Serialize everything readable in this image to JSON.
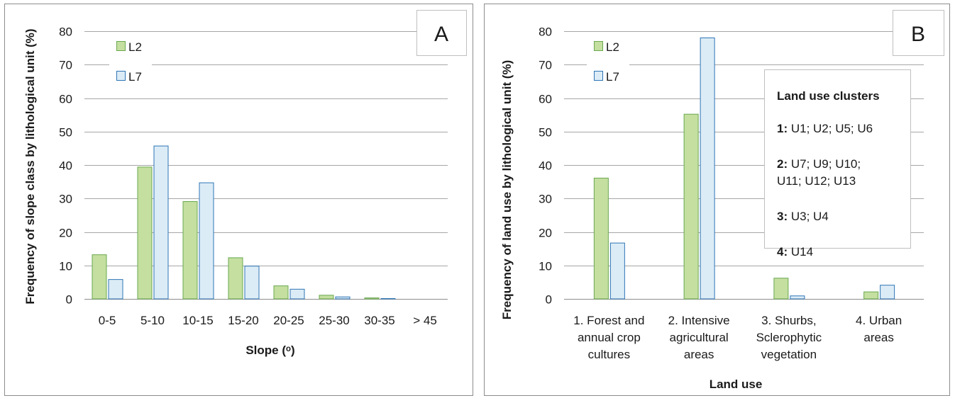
{
  "colors": {
    "L2_fill": "#c4dfa0",
    "L2_stroke": "#6aa84f",
    "L7_fill": "#dcecf6",
    "L7_stroke": "#2e75b6"
  },
  "chart_data": [
    {
      "type": "bar",
      "panel_letter": "A",
      "title": "",
      "xlabel": "Slope (ᵒ)",
      "ylabel": "Frequency of slope class by lithological unit   (%)",
      "ylim": [
        0,
        80
      ],
      "yticks": [
        "0",
        "10",
        "20",
        "30",
        "40",
        "50",
        "60",
        "70",
        "80"
      ],
      "categories": [
        "0-5",
        "5-10",
        "10-15",
        "15-20",
        "20-25",
        "25-30",
        "30-35",
        "> 45"
      ],
      "series": [
        {
          "name": "L2",
          "values": [
            13.3,
            39.5,
            29.2,
            12.4,
            4.0,
            1.2,
            0.4,
            0.1
          ]
        },
        {
          "name": "L7",
          "values": [
            5.9,
            45.8,
            34.8,
            9.9,
            3.0,
            0.7,
            0.2,
            0.05
          ]
        }
      ],
      "legend_position": "top-left",
      "grid": true
    },
    {
      "type": "bar",
      "panel_letter": "B",
      "title": "",
      "xlabel": "Land use",
      "ylabel": "Frequency of land use  by lithological unit   (%)",
      "ylim": [
        0,
        80
      ],
      "yticks": [
        "0",
        "10",
        "20",
        "30",
        "40",
        "50",
        "60",
        "70",
        "80"
      ],
      "categories": [
        [
          "1. Forest and",
          "annual crop",
          "cultures"
        ],
        [
          "2. Intensive",
          "agricultural",
          "areas"
        ],
        [
          "3. Shurbs,",
          "Sclerophytic",
          "vegetation"
        ],
        [
          "4. Urban",
          "areas"
        ]
      ],
      "series": [
        {
          "name": "L2",
          "values": [
            36.2,
            55.3,
            6.3,
            2.2
          ]
        },
        {
          "name": "L7",
          "values": [
            16.8,
            78.1,
            1.0,
            4.2
          ]
        }
      ],
      "legend_position": "top-left",
      "grid": true,
      "annotation_box": {
        "title": "Land use clusters",
        "items": [
          {
            "label": "1:",
            "lines": [
              " U1; U2; U5; U6"
            ]
          },
          {
            "label": "2:",
            "lines": [
              " U7; U9; U10;",
              "U11; U12; U13"
            ]
          },
          {
            "label": "3:",
            "lines": [
              " U3; U4"
            ]
          },
          {
            "label": "4:",
            "lines": [
              " U14"
            ]
          }
        ]
      }
    }
  ]
}
